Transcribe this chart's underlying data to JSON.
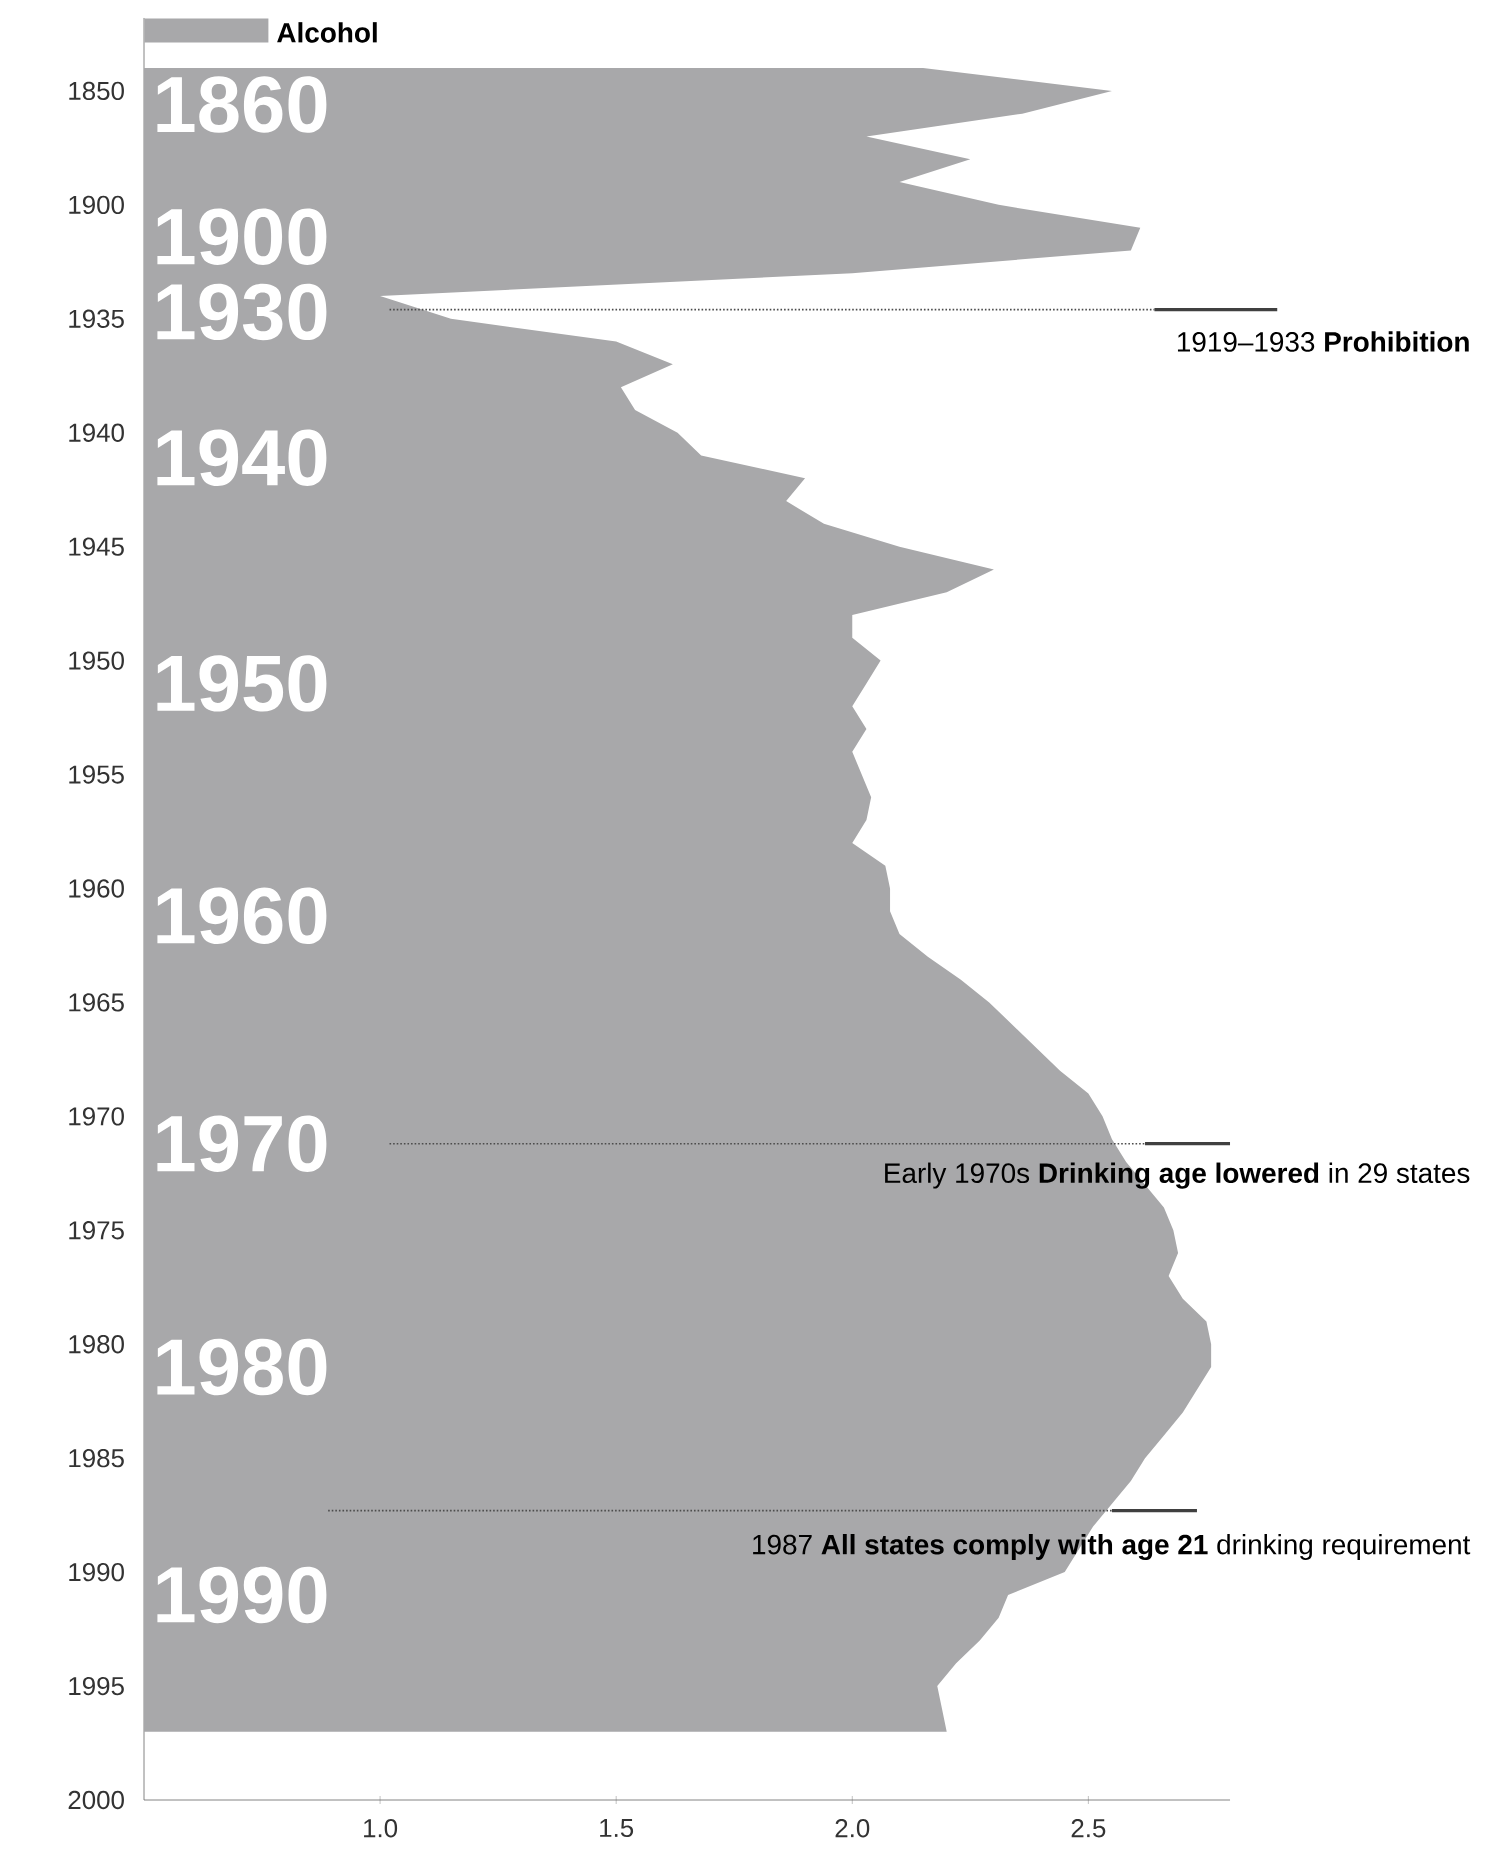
{
  "chart_data": {
    "type": "area",
    "orientation": "horizontal",
    "legend": "top left",
    "categories": [
      null,
      "1850",
      null,
      null,
      null,
      null,
      "1900",
      null,
      null,
      null,
      null,
      "1935",
      null,
      null,
      null,
      null,
      "1940",
      null,
      null,
      null,
      null,
      "1945",
      null,
      null,
      null,
      null,
      "1950",
      null,
      null,
      null,
      null,
      "1955",
      null,
      null,
      null,
      null,
      "1960",
      null,
      null,
      null,
      null,
      "1965",
      null,
      null,
      null,
      null,
      "1970",
      null,
      null,
      null,
      null,
      "1975",
      null,
      null,
      null,
      null,
      "1980",
      null,
      null,
      null,
      null,
      "1985",
      null,
      null,
      null,
      null,
      "1990",
      null,
      null,
      null,
      null,
      "1995",
      null,
      null,
      null,
      null,
      "2000"
    ],
    "series": [
      {
        "name": "Alcohol",
        "color": "#a8a8aa",
        "values": [
          2.15,
          2.55,
          2.36,
          2.03,
          2.25,
          2.1,
          2.31,
          2.61,
          2.59,
          2.0,
          1.0,
          1.15,
          1.5,
          1.62,
          1.51,
          1.54,
          1.63,
          1.68,
          1.9,
          1.86,
          1.94,
          2.1,
          2.3,
          2.2,
          2.0,
          2.0,
          2.06,
          2.03,
          2.0,
          2.03,
          2.0,
          2.02,
          2.04,
          2.03,
          2.0,
          2.07,
          2.08,
          2.08,
          2.1,
          2.16,
          2.23,
          2.29,
          2.34,
          2.39,
          2.44,
          2.5,
          2.53,
          2.55,
          2.58,
          2.62,
          2.66,
          2.68,
          2.69,
          2.67,
          2.7,
          2.75,
          2.76,
          2.76,
          2.73,
          2.7,
          2.66,
          2.62,
          2.59,
          2.55,
          2.51,
          2.48,
          2.45,
          2.33,
          2.31,
          2.27,
          2.22,
          2.18,
          2.19,
          2.2,
          null,
          null,
          null
        ]
      }
    ],
    "xlim": [
      0.5,
      2.8
    ],
    "xticks": [
      {
        "value": 1,
        "label": "1.0"
      },
      1.5,
      {
        "value": 2,
        "label": "2.0"
      },
      2.5
    ],
    "annotations": [
      "1860",
      "1900",
      "1930",
      "1940",
      "1950",
      "1960",
      "1970",
      "1980",
      "1990",
      "1919–1933 **Prohibition**",
      "Early 1970s **Drinking age lowered** in 29 states",
      "1987 **All states comply with age 21** drinking requirement"
    ]
  }
}
